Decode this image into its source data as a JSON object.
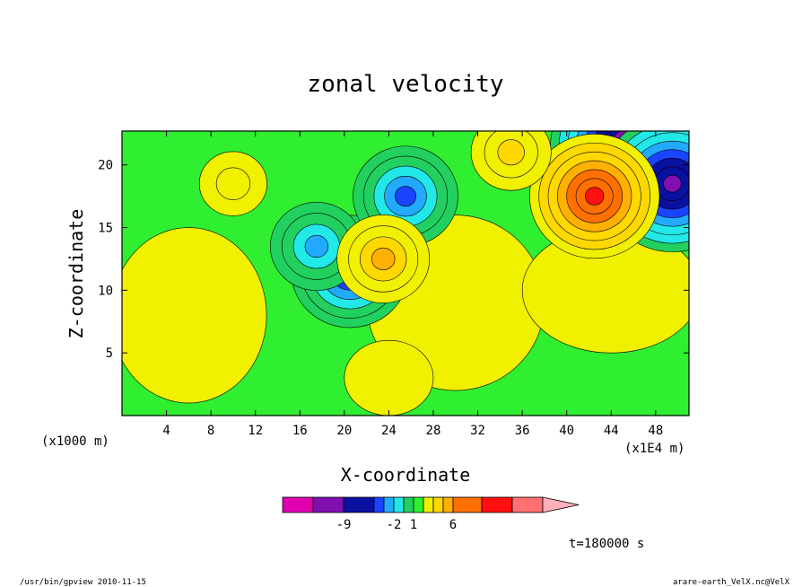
{
  "chart_data": {
    "type": "heatmap",
    "title": "zonal velocity",
    "xlabel": "X-coordinate",
    "ylabel": "Z-coordinate",
    "x_unit": "(x1E4 m)",
    "y_unit": "(x1000 m)",
    "xlim": [
      0,
      51
    ],
    "ylim": [
      0,
      22.7
    ],
    "x_ticks": [
      "4",
      "8",
      "12",
      "16",
      "20",
      "24",
      "28",
      "32",
      "36",
      "40",
      "44",
      "48"
    ],
    "y_ticks": [
      "5",
      "10",
      "15",
      "20"
    ],
    "time_label": "t=180000 s",
    "colorbar": {
      "tick_labels": [
        "-9",
        "-2",
        "1",
        "6"
      ],
      "colors": [
        "#e000b0",
        "#8010b0",
        "#0a10a0",
        "#1a44ff",
        "#22aaff",
        "#22e8e8",
        "#22d060",
        "#30ee30",
        "#f0f000",
        "#ffd800",
        "#ffb000",
        "#ff7000",
        "#ff1010",
        "#ff7070",
        "#ffb0b8"
      ]
    },
    "features": [
      {
        "cx": 20.5,
        "cz": 11.5,
        "value": -6,
        "note": "negative lobe"
      },
      {
        "cx": 17.5,
        "cz": 13.5,
        "value": -4,
        "note": "negative lobe"
      },
      {
        "cx": 25.5,
        "cz": 17.5,
        "value": -5,
        "note": "negative lobe"
      },
      {
        "cx": 45.5,
        "cz": 21.5,
        "value": -9,
        "note": "negative lobe"
      },
      {
        "cx": 49.5,
        "cz": 18.5,
        "value": -8,
        "note": "negative lobe"
      },
      {
        "cx": 42.5,
        "cz": 17.5,
        "value": 7,
        "note": "positive lobe"
      },
      {
        "cx": 23.5,
        "cz": 12.5,
        "value": 4,
        "note": "positive lobe"
      },
      {
        "cx": 35.0,
        "cz": 21.0,
        "value": 3,
        "note": "positive lobe"
      },
      {
        "cx": 10.0,
        "cz": 18.5,
        "value": 2,
        "note": "positive lobe"
      }
    ]
  },
  "footer": {
    "left": "/usr/bin/gpview  2010-11-15",
    "right": "arare-earth_VelX.nc@VelX"
  }
}
